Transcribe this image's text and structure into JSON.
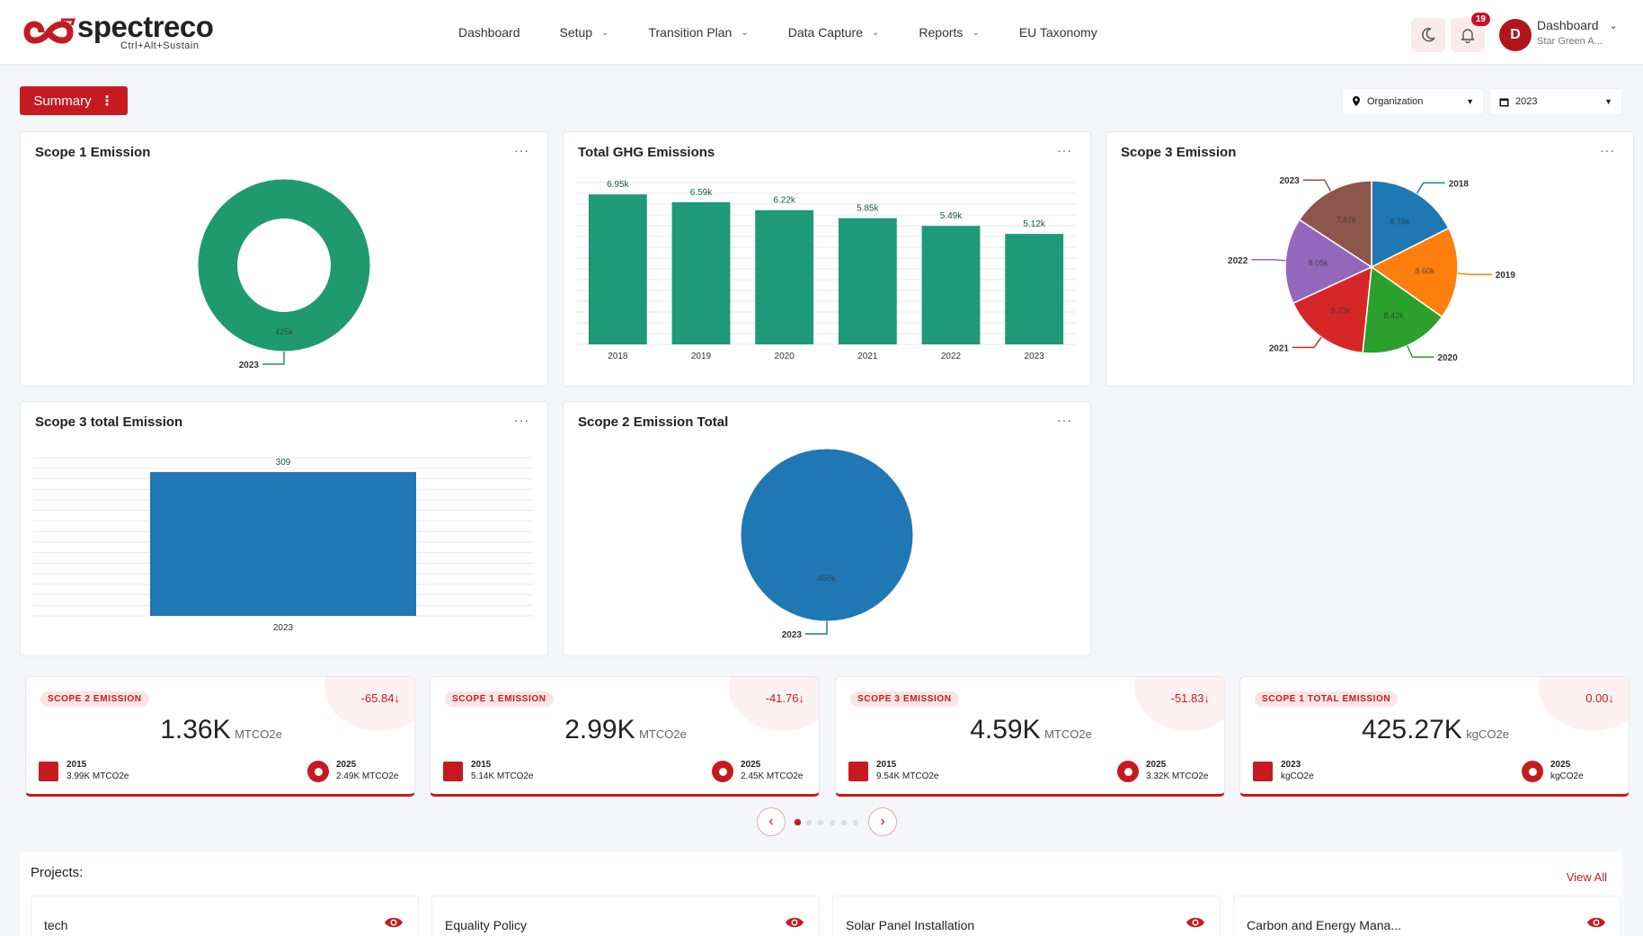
{
  "brand": {
    "name": "spectreco",
    "tagline": "Ctrl+Alt+Sustain",
    "accent": "#c51b20"
  },
  "nav": {
    "items": [
      {
        "label": "Dashboard",
        "has_menu": false
      },
      {
        "label": "Setup",
        "has_menu": true
      },
      {
        "label": "Transition Plan",
        "has_menu": true
      },
      {
        "label": "Data Capture",
        "has_menu": true
      },
      {
        "label": "Reports",
        "has_menu": true
      },
      {
        "label": "EU Taxonomy",
        "has_menu": false
      }
    ]
  },
  "header": {
    "notifications_count": "19",
    "avatar_letter": "D",
    "user_title": "Dashboard",
    "user_org": "Star Green A..."
  },
  "toolbar": {
    "summary_label": "Summary",
    "organization_label": "Organization",
    "year_label": "2023"
  },
  "cards": {
    "scope1": {
      "title": "Scope 1 Emission",
      "menu": "···"
    },
    "total_ghg": {
      "title": "Total GHG Emissions",
      "menu": "···"
    },
    "scope3": {
      "title": "Scope 3 Emission",
      "menu": "···"
    },
    "scope3_total": {
      "title": "Scope 3 total Emission",
      "menu": "···"
    },
    "scope2_total": {
      "title": "Scope 2 Emission Total",
      "menu": "···"
    }
  },
  "chart_data": [
    {
      "id": "scope1",
      "type": "pie",
      "title": "Scope 1 Emission",
      "variant": "donut",
      "slices": [
        {
          "label": "2023",
          "value": 425,
          "value_label": "425k",
          "color": "#1f9a6f"
        }
      ]
    },
    {
      "id": "total_ghg",
      "type": "bar",
      "title": "Total GHG Emissions",
      "categories": [
        "2018",
        "2019",
        "2020",
        "2021",
        "2022",
        "2023"
      ],
      "values": [
        6.95,
        6.59,
        6.22,
        5.85,
        5.49,
        5.12
      ],
      "value_labels": [
        "6.95k",
        "6.59k",
        "6.22k",
        "5.85k",
        "5.49k",
        "5.12k"
      ],
      "ylim": [
        0,
        7.5
      ],
      "color": "#1f9a78"
    },
    {
      "id": "scope3",
      "type": "pie",
      "title": "Scope 3 Emission",
      "slices": [
        {
          "label": "2018",
          "value": 8.78,
          "value_label": "8.78k",
          "color": "#1f77b4"
        },
        {
          "label": "2019",
          "value": 8.6,
          "value_label": "8.60k",
          "color": "#ff7f0e"
        },
        {
          "label": "2020",
          "value": 8.42,
          "value_label": "8.42k",
          "color": "#2ca02c"
        },
        {
          "label": "2021",
          "value": 8.23,
          "value_label": "8.23k",
          "color": "#d62728"
        },
        {
          "label": "2022",
          "value": 8.05,
          "value_label": "8.05k",
          "color": "#9467bd"
        },
        {
          "label": "2023",
          "value": 7.87,
          "value_label": "7.87k",
          "color": "#8c564b"
        }
      ]
    },
    {
      "id": "scope3_total",
      "type": "bar",
      "title": "Scope 3 total Emission",
      "categories": [
        "2023"
      ],
      "values": [
        309
      ],
      "value_labels": [
        "309"
      ],
      "ylim": [
        0,
        340
      ],
      "color": "#1f77b4"
    },
    {
      "id": "scope2_total",
      "type": "pie",
      "title": "Scope 2 Emission Total",
      "slices": [
        {
          "label": "2023",
          "value": 450,
          "value_label": "450k",
          "color": "#1f77b4"
        }
      ]
    }
  ],
  "kpis": [
    {
      "label": "SCOPE 2 EMISSION",
      "change": "-65.84",
      "value": "1.36K",
      "unit": "MTCO2e",
      "left_year": "2015",
      "left_value": "3.99K MTCO2e",
      "right_year": "2025",
      "right_value": "2.49K MTCO2e"
    },
    {
      "label": "SCOPE 1 EMISSION",
      "change": "-41.76",
      "value": "2.99K",
      "unit": "MTCO2e",
      "left_year": "2015",
      "left_value": "5.14K MTCO2e",
      "right_year": "2025",
      "right_value": "2.45K MTCO2e"
    },
    {
      "label": "SCOPE 3 EMISSION",
      "change": "-51.83",
      "value": "4.59K",
      "unit": "MTCO2e",
      "left_year": "2015",
      "left_value": "9.54K MTCO2e",
      "right_year": "2025",
      "right_value": "3.32K MTCO2e"
    },
    {
      "label": "SCOPE 1 TOTAL EMISSION",
      "change": "0.00",
      "value": "425.27K",
      "unit": "kgCO2e",
      "left_year": "2023",
      "left_value": "kgCO2e",
      "right_year": "2025",
      "right_value": "kgCO2e"
    }
  ],
  "carousel": {
    "prev_icon": "‹",
    "next_icon": "›",
    "dots": 6,
    "active": 0
  },
  "projects": {
    "title": "Projects:",
    "view_all": "View All",
    "items": [
      {
        "name": "tech"
      },
      {
        "name": "Equality Policy"
      },
      {
        "name": "Solar Panel Installation"
      },
      {
        "name": "Carbon and Energy Mana..."
      }
    ]
  }
}
